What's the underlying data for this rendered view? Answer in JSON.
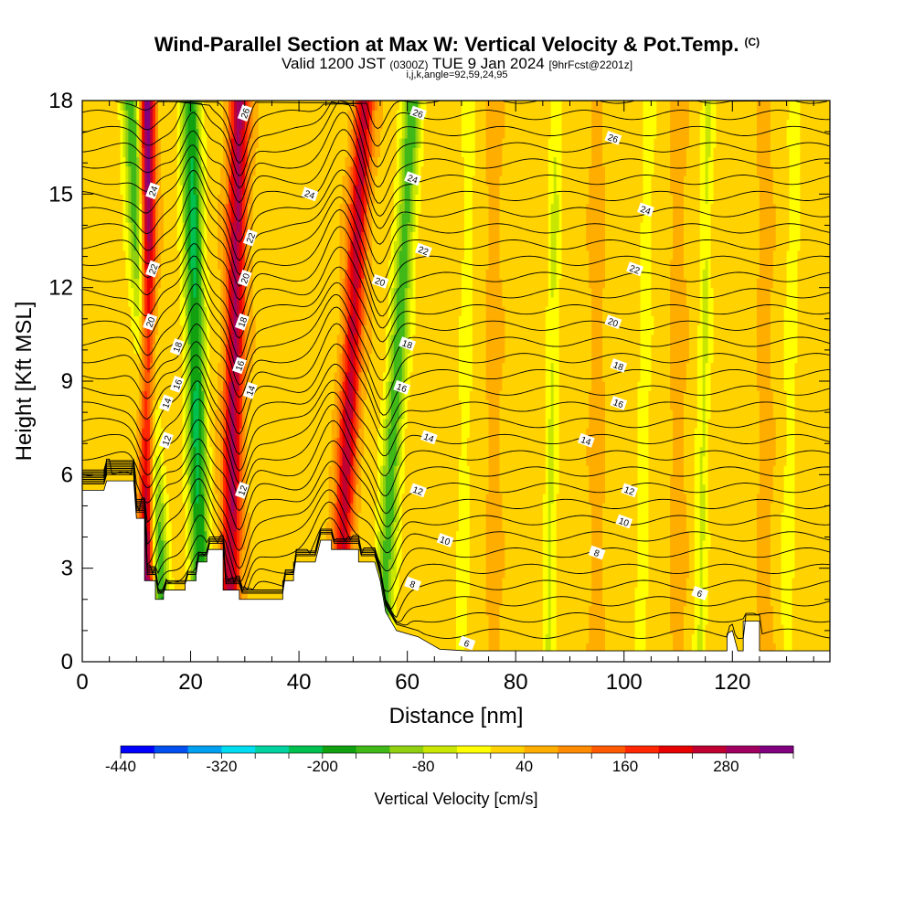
{
  "header": {
    "title": "Wind-Parallel Section at Max W: Vertical Velocity & Pot.Temp.",
    "copyright": "(C)",
    "valid_prefix": "Valid 1200 JST",
    "valid_utc": "(0300Z)",
    "valid_date": "TUE 9 Jan 2024",
    "forecast": "[9hrFcst@2201z]",
    "params": "i,j,k,angle=92,59,24,95"
  },
  "chart_data": {
    "type": "heatmap",
    "xlabel": "Distance [nm]",
    "ylabel": "Height [Kft MSL]",
    "xlim": [
      0,
      138
    ],
    "ylim": [
      0,
      18
    ],
    "x_ticks": [
      0,
      20,
      40,
      60,
      80,
      100,
      120
    ],
    "x_tick_labels": [
      "0",
      "20",
      "40",
      "60",
      "80",
      "100",
      "120"
    ],
    "y_ticks": [
      0,
      3,
      6,
      9,
      12,
      15,
      18
    ],
    "y_tick_labels": [
      "0",
      "3",
      "6",
      "9",
      "12",
      "15",
      "18"
    ],
    "colorbar": {
      "label": "Vertical Velocity [cm/s]",
      "levels": [
        -440,
        -400,
        -360,
        -320,
        -280,
        -240,
        -200,
        -160,
        -120,
        -80,
        -40,
        0,
        40,
        80,
        120,
        160,
        200,
        240,
        280,
        320,
        360
      ],
      "colors": [
        "#0000ff",
        "#0050f0",
        "#00a0f0",
        "#00dcf0",
        "#00d2a0",
        "#00c050",
        "#10a010",
        "#40b818",
        "#90d010",
        "#c8e600",
        "#ffff00",
        "#ffd200",
        "#ffae00",
        "#ff8c00",
        "#ff5a00",
        "#ff2800",
        "#e60000",
        "#c00030",
        "#a00060",
        "#800080"
      ],
      "tick_values": [
        -440,
        -320,
        -200,
        -80,
        40,
        160,
        280
      ],
      "tick_labels": [
        "-440",
        "-320",
        "-200",
        "-80",
        "40",
        "160",
        "280"
      ]
    },
    "terrain_kft": [
      [
        0,
        5.5
      ],
      [
        4,
        5.5
      ],
      [
        4.5,
        5.8
      ],
      [
        9.5,
        5.8
      ],
      [
        10,
        4.6
      ],
      [
        11.5,
        4.6
      ],
      [
        11.5,
        2.6
      ],
      [
        13.5,
        2.6
      ],
      [
        13.5,
        2.0
      ],
      [
        15,
        2.0
      ],
      [
        15,
        2.3
      ],
      [
        19,
        2.3
      ],
      [
        19,
        2.6
      ],
      [
        21,
        2.6
      ],
      [
        21,
        3.2
      ],
      [
        23,
        3.2
      ],
      [
        23,
        3.6
      ],
      [
        26,
        3.6
      ],
      [
        26,
        2.3
      ],
      [
        29,
        2.3
      ],
      [
        29,
        2.0
      ],
      [
        37,
        2.0
      ],
      [
        37,
        2.6
      ],
      [
        39,
        2.6
      ],
      [
        39,
        3.2
      ],
      [
        43,
        3.2
      ],
      [
        44,
        3.9
      ],
      [
        46,
        3.9
      ],
      [
        46,
        3.6
      ],
      [
        51,
        3.6
      ],
      [
        51,
        3.2
      ],
      [
        54,
        3.2
      ],
      [
        55,
        2.6
      ],
      [
        56,
        1.6
      ],
      [
        58,
        1.0
      ],
      [
        62,
        0.8
      ],
      [
        66,
        0.4
      ],
      [
        71,
        0.35
      ],
      [
        119,
        0.35
      ],
      [
        119,
        0.9
      ],
      [
        120,
        1.0
      ],
      [
        121,
        0.35
      ],
      [
        122,
        0.35
      ],
      [
        122,
        1.3
      ],
      [
        125,
        1.3
      ],
      [
        125,
        0.35
      ],
      [
        138,
        0.35
      ]
    ],
    "updraft_bands": [
      {
        "x_base": 12,
        "x_top": 12,
        "peak_cm_s": 340
      },
      {
        "x_base": 27,
        "x_top": 29,
        "peak_cm_s": 260
      },
      {
        "x_base": 47,
        "x_top": 52,
        "peak_cm_s": 230
      }
    ],
    "downdraft_bands": [
      {
        "x_base": 15,
        "x_top": 9,
        "peak_cm_s": -200
      },
      {
        "x_base": 22,
        "x_top": 20,
        "peak_cm_s": -230
      },
      {
        "x_base": 55,
        "x_top": 61,
        "peak_cm_s": -170
      }
    ],
    "theta_contour_labels": [
      "26",
      "26",
      "26",
      "24",
      "24",
      "24",
      "24",
      "22",
      "22",
      "22",
      "22",
      "20",
      "20",
      "20",
      "20",
      "18",
      "18",
      "18",
      "18",
      "16",
      "16",
      "16",
      "16",
      "14",
      "14",
      "14",
      "14",
      "12",
      "12",
      "12",
      "12",
      "10",
      "10",
      "8",
      "8",
      "6",
      "6"
    ]
  }
}
